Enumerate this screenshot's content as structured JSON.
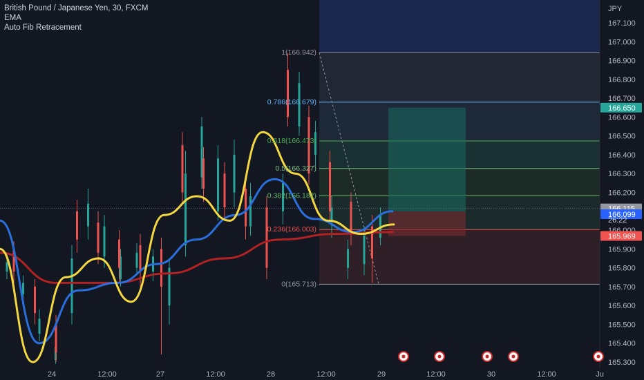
{
  "header": {
    "symbol_line": "British Pound / Japanese Yen, 30, FXCM",
    "indicator_1": "EMA",
    "indicator_2": "Auto Fib Retracement"
  },
  "colors": {
    "background": "#131722",
    "bull_candle": "#26a69a",
    "bear_candle": "#ef5350",
    "ema_fast": "#f5d742",
    "ema_mid": "#2a6fdb",
    "ema_slow": "#b22222",
    "tp_zone": "#1a6b63",
    "sl_zone": "#7a2a2e"
  },
  "chart_data": {
    "type": "candlestick",
    "currency": "JPY",
    "ylim": [
      165.3,
      167.1
    ],
    "y_ticks": [
      "167.100",
      "167.000",
      "166.900",
      "166.800",
      "166.700",
      "166.600",
      "166.500",
      "166.400",
      "166.300",
      "166.200",
      "166.100",
      "166.000",
      "165.900",
      "165.800",
      "165.700",
      "165.600",
      "165.500",
      "165.400",
      "165.300"
    ],
    "x_ticks": [
      "24",
      "12:00",
      "27",
      "12:00",
      "28",
      "12:00",
      "29",
      "12:00",
      "30",
      "12:00",
      "Ju"
    ],
    "fib_levels": [
      {
        "label": "1(166.942)",
        "value": 166.942,
        "color": "#9598a1"
      },
      {
        "label": "0.786(166.679)",
        "value": 166.679,
        "color": "#64b5f6"
      },
      {
        "label": "0.618(166.473)",
        "value": 166.473,
        "color": "#4caf50"
      },
      {
        "label": "0.5(166.327)",
        "value": 166.327,
        "color": "#81c784"
      },
      {
        "label": "0.382(166.182)",
        "value": 166.182,
        "color": "#66bb6a"
      },
      {
        "label": "0.236(166.003)",
        "value": 166.003,
        "color": "#ef5350"
      },
      {
        "label": "0(165.713)",
        "value": 165.713,
        "color": "#9598a1"
      }
    ],
    "position": {
      "entry": 166.099,
      "target": 166.65,
      "stop": 165.969
    },
    "price_tags": [
      {
        "text": "166.650",
        "value": 166.65,
        "bg": "#26a69a",
        "fg": "#ffffff"
      },
      {
        "text": "166.115",
        "value": 166.115,
        "bg": "#9598a1",
        "fg": "#ffffff"
      },
      {
        "text": "166.099",
        "value": 166.099,
        "bg": "#2962ff",
        "fg": "#ffffff"
      },
      {
        "text": "165.969",
        "value": 165.969,
        "bg": "#ef5350",
        "fg": "#ffffff"
      }
    ],
    "countdown": "26:22",
    "candles_bull": [
      [
        165.78,
        165.83,
        165.74,
        165.88
      ],
      [
        165.66,
        165.72,
        165.62,
        165.76
      ],
      [
        165.45,
        165.53,
        165.41,
        165.58
      ],
      [
        165.31,
        165.38,
        165.29,
        165.42
      ],
      [
        165.56,
        165.85,
        165.5,
        165.92
      ],
      [
        166.02,
        166.14,
        165.95,
        166.22
      ],
      [
        165.86,
        166.02,
        165.8,
        166.08
      ],
      [
        165.74,
        165.86,
        165.7,
        165.9
      ],
      [
        165.8,
        165.88,
        165.76,
        165.93
      ],
      [
        165.78,
        165.86,
        165.73,
        165.9
      ],
      [
        165.6,
        165.8,
        165.5,
        165.85
      ],
      [
        165.92,
        166.3,
        165.86,
        166.42
      ],
      [
        166.28,
        166.55,
        166.22,
        166.6
      ],
      [
        166.1,
        166.38,
        166.05,
        166.45
      ],
      [
        166.2,
        166.4,
        166.12,
        166.48
      ],
      [
        166.02,
        166.18,
        165.97,
        166.25
      ],
      [
        165.92,
        166.02,
        165.88,
        166.07
      ],
      [
        166.1,
        166.25,
        166.03,
        166.3
      ],
      [
        166.55,
        166.78,
        166.5,
        166.84
      ],
      [
        166.4,
        166.52,
        166.34,
        166.58
      ],
      [
        166.05,
        166.12,
        165.96,
        166.18
      ],
      [
        165.8,
        165.9,
        165.74,
        165.95
      ],
      [
        165.82,
        165.97,
        165.76,
        166.02
      ],
      [
        165.96,
        166.08,
        165.92,
        166.12
      ]
    ],
    "candles_bear": [
      [
        165.9,
        165.78,
        165.72,
        165.94
      ],
      [
        165.7,
        165.56,
        165.5,
        165.74
      ],
      [
        165.5,
        165.35,
        165.3,
        165.55
      ],
      [
        166.1,
        165.95,
        165.88,
        166.16
      ],
      [
        166.04,
        165.88,
        165.82,
        166.1
      ],
      [
        165.95,
        165.8,
        165.72,
        166.0
      ],
      [
        165.92,
        165.78,
        165.7,
        165.98
      ],
      [
        165.9,
        165.7,
        165.34,
        165.96
      ],
      [
        166.45,
        166.2,
        166.14,
        166.52
      ],
      [
        166.38,
        166.22,
        166.15,
        166.44
      ],
      [
        166.3,
        166.12,
        166.05,
        166.36
      ],
      [
        166.22,
        166.02,
        165.95,
        166.28
      ],
      [
        166.12,
        165.8,
        165.74,
        166.18
      ],
      [
        166.85,
        166.6,
        166.55,
        166.94
      ],
      [
        166.6,
        166.3,
        166.24,
        166.66
      ],
      [
        166.36,
        166.1,
        166.04,
        166.42
      ],
      [
        166.15,
        165.98,
        165.92,
        166.2
      ],
      [
        166.02,
        165.85,
        165.72,
        166.08
      ]
    ],
    "ema_fast_points": [
      [
        165.9
      ],
      [
        165.3
      ],
      [
        165.75
      ],
      [
        165.85
      ],
      [
        165.62
      ],
      [
        166.08
      ],
      [
        166.18
      ],
      [
        166.05
      ],
      [
        166.52
      ],
      [
        166.3
      ],
      [
        166.05
      ],
      [
        165.98
      ],
      [
        166.03
      ]
    ],
    "ema_mid_points": [
      [
        166.05
      ],
      [
        165.4
      ],
      [
        165.68
      ],
      [
        165.72
      ],
      [
        165.82
      ],
      [
        165.95
      ],
      [
        166.08
      ],
      [
        166.27
      ],
      [
        166.06
      ],
      [
        165.99
      ],
      [
        166.1
      ]
    ],
    "ema_slow_points": [
      [
        165.88
      ],
      [
        165.72
      ],
      [
        165.72
      ],
      [
        165.77
      ],
      [
        165.85
      ],
      [
        165.95
      ],
      [
        165.98
      ],
      [
        165.99
      ]
    ]
  }
}
